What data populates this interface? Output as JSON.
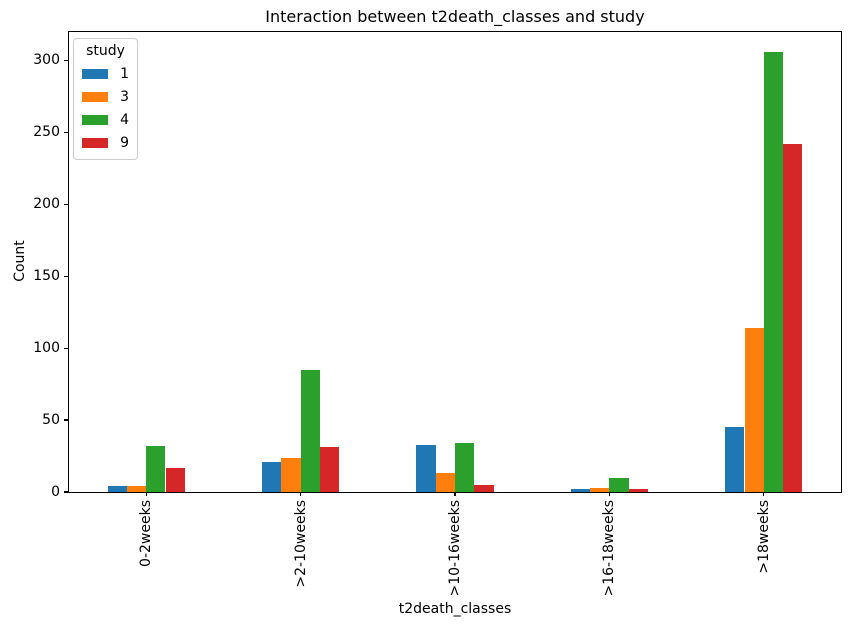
{
  "chart_data": {
    "type": "bar",
    "title": "Interaction between t2death_classes and study",
    "xlabel": "t2death_classes",
    "ylabel": "Count",
    "categories": [
      "0-2weeks",
      ">2-10weeks",
      ">10-16weeks",
      ">16-18weeks",
      ">18weeks"
    ],
    "series": [
      {
        "name": "1",
        "color": "#1f77b4",
        "values": [
          4,
          21,
          33,
          2,
          45
        ]
      },
      {
        "name": "3",
        "color": "#ff7f0e",
        "values": [
          4,
          24,
          13,
          3,
          114
        ]
      },
      {
        "name": "4",
        "color": "#2ca02c",
        "values": [
          32,
          85,
          34,
          10,
          306
        ]
      },
      {
        "name": "9",
        "color": "#d62728",
        "values": [
          17,
          31,
          5,
          2,
          242
        ]
      }
    ],
    "legend_title": "study",
    "legend_position": "upper left",
    "ylim": [
      0,
      320
    ],
    "yticks": [
      0,
      50,
      100,
      150,
      200,
      250,
      300
    ],
    "grid": false,
    "bar_group_fraction": 0.5,
    "xtick_rotation": 90
  }
}
